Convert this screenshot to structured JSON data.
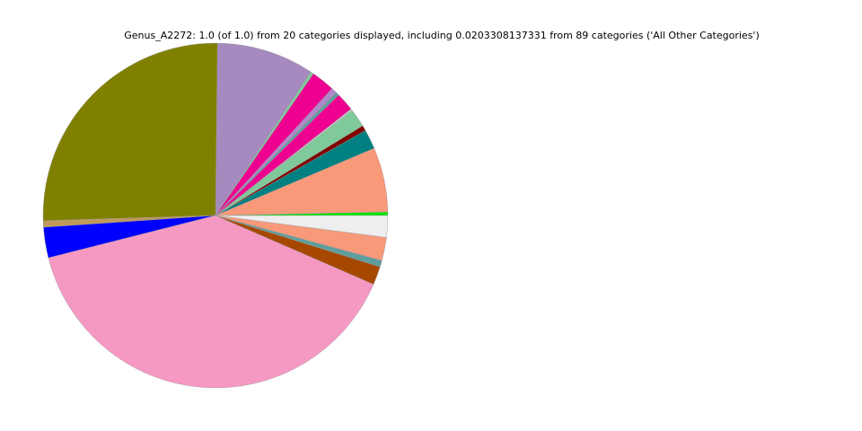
{
  "chart_data": {
    "type": "pie",
    "title": "Genus_A2272: 1.0 (of 1.0) from 20 categories displayed, including 0.0203308137331 from 89 categories ('All Other Categories')",
    "start_angle_deg": 0,
    "direction": "counterclockwise",
    "legend": "none",
    "slices": [
      {
        "value": 0.0033,
        "color": "#00e600"
      },
      {
        "value": 0.0606,
        "color": "#f8997a"
      },
      {
        "value": 0.0183,
        "color": "#008080"
      },
      {
        "value": 0.005,
        "color": "#800000"
      },
      {
        "value": 0.0172,
        "color": "#80c99a"
      },
      {
        "value": 0.0017,
        "color": "#c8c8c8"
      },
      {
        "value": 0.0172,
        "color": "#ee0090"
      },
      {
        "value": 0.0033,
        "color": "#5f9e9e"
      },
      {
        "value": 0.0053,
        "color": "#b088c8"
      },
      {
        "value": 0.022,
        "color": "#ee0090"
      },
      {
        "value": 0.003,
        "color": "#80c99a"
      },
      {
        "value": 0.0914,
        "color": "#a589bf"
      },
      {
        "value": 0.2567,
        "color": "#808000"
      },
      {
        "value": 0.0061,
        "color": "#c09a5a"
      },
      {
        "value": 0.0286,
        "color": "#0000ff"
      },
      {
        "value": 0.3953,
        "color": "#f599c3"
      },
      {
        "value": 0.0172,
        "color": "#a64800"
      },
      {
        "value": 0.0061,
        "color": "#5f9e9e"
      },
      {
        "value": 0.0217,
        "color": "#f8997a"
      },
      {
        "value": 0.0203308137331,
        "color": "#eeeeee"
      }
    ]
  }
}
